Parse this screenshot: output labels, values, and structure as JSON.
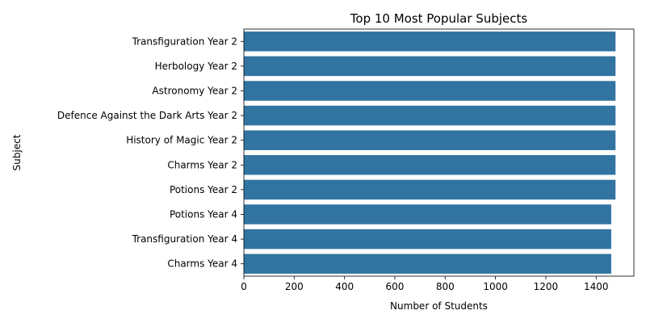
{
  "chart_data": {
    "type": "bar",
    "orientation": "horizontal",
    "title": "Top 10 Most Popular Subjects",
    "xlabel": "Number of Students",
    "ylabel": "Subject",
    "categories": [
      "Transfiguration Year 2",
      "Herbology Year 2",
      "Astronomy Year 2",
      "Defence Against the Dark Arts Year 2",
      "History of Magic Year 2",
      "Charms Year 2",
      "Potions Year 2",
      "Potions Year 4",
      "Transfiguration Year 4",
      "Charms Year 4"
    ],
    "values": [
      1477,
      1477,
      1477,
      1477,
      1477,
      1477,
      1477,
      1460,
      1460,
      1460
    ],
    "xlim": [
      0,
      1550
    ],
    "xticks": [
      0,
      200,
      400,
      600,
      800,
      1000,
      1200,
      1400
    ],
    "bar_color": "#3274a1",
    "grid": false,
    "legend": "none"
  }
}
